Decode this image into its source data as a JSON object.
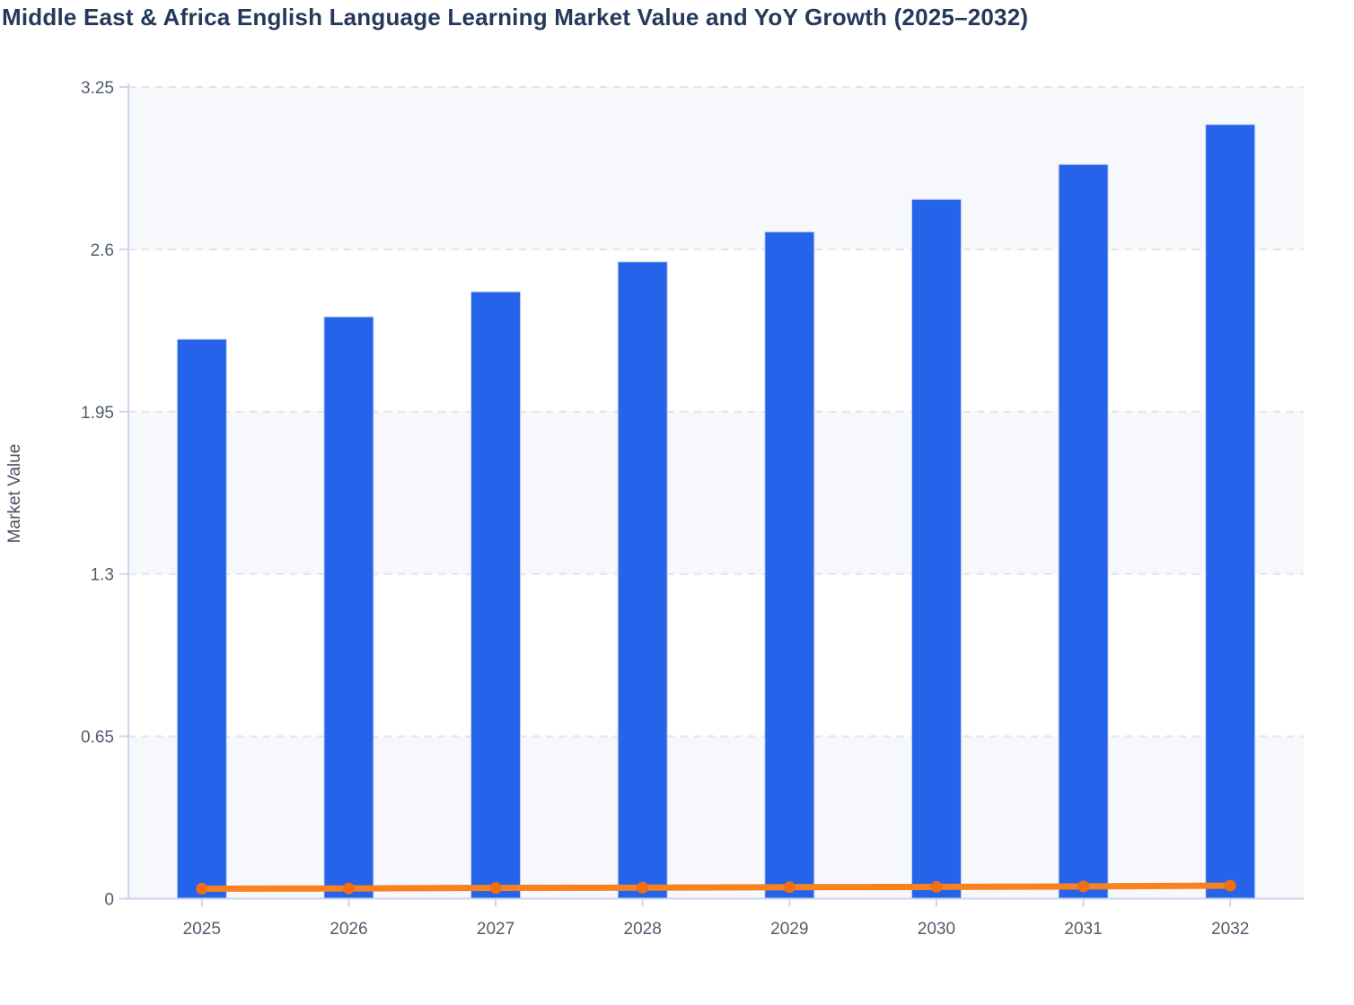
{
  "title": "Middle East & Africa English Language Learning Market Value and YoY Growth (2025–2032)",
  "y_axis": {
    "label": "Market Value"
  },
  "colors": {
    "bar": "#2563eb",
    "bar_edge": "#c7d2f0",
    "line": "#f8821f",
    "marker": "#f26e10",
    "title_text": "#24395b",
    "tick_text": "#525c6c",
    "axis_line": "#c9d4ef",
    "grid_line": "#e3e4e8",
    "band_fill": "#f7f8fb",
    "plot_bg": "#ffffff"
  },
  "chart_data": {
    "type": "bar",
    "title": "Middle East & Africa English Language Learning Market Value and YoY Growth (2025–2032)",
    "categories": [
      "2025",
      "2026",
      "2027",
      "2028",
      "2029",
      "2030",
      "2031",
      "2032"
    ],
    "series": [
      {
        "name": "Market Value",
        "type": "bar",
        "values": [
          2.24,
          2.33,
          2.43,
          2.55,
          2.67,
          2.8,
          2.94,
          3.1
        ]
      },
      {
        "name": "YoY Growth",
        "type": "line",
        "values": [
          0.04,
          0.041,
          0.043,
          0.044,
          0.046,
          0.047,
          0.049,
          0.052
        ]
      }
    ],
    "xlabel": "",
    "ylabel": "Market Value",
    "ylim": [
      0,
      3.25
    ],
    "yticks": [
      0,
      0.65,
      1.3,
      1.95,
      2.6,
      3.25
    ],
    "ytick_labels": [
      "0",
      "0.65",
      "1.3",
      "1.95",
      "2.6",
      "3.25"
    ],
    "grid": "horizontal-dashed",
    "band_rows": "alternating shaded between gridlines",
    "legend_position": "none"
  }
}
